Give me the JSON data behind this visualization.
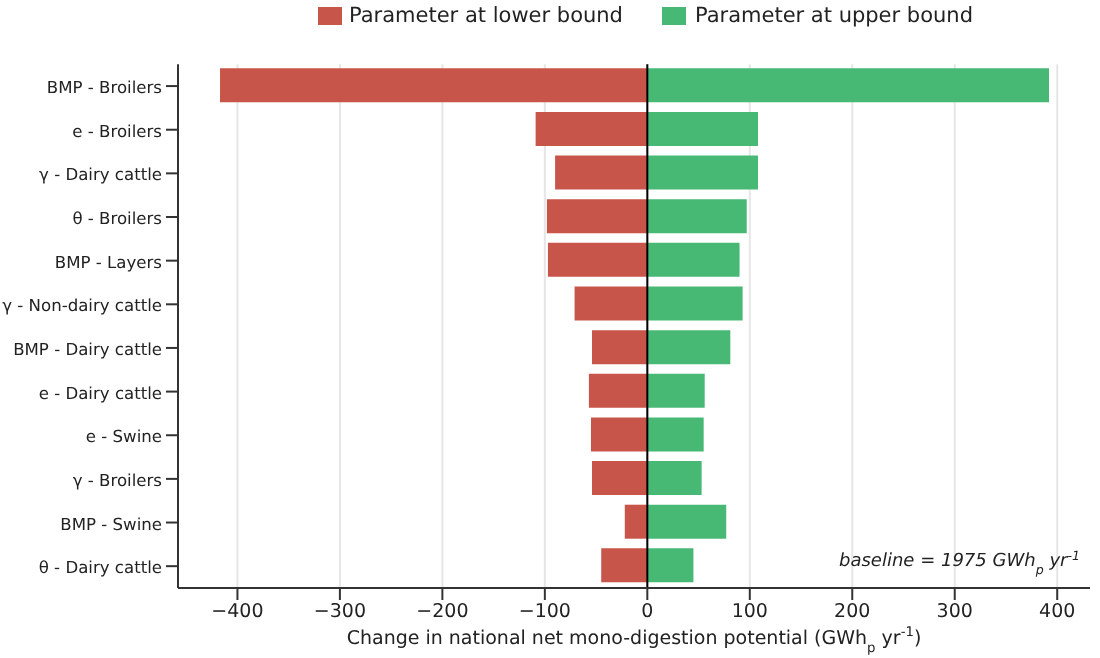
{
  "chart_data": {
    "type": "bar",
    "orientation": "horizontal",
    "stacked": true,
    "categories": [
      "BMP - Broilers",
      "e - Broilers",
      "γ - Dairy cattle",
      "θ - Broilers",
      "BMP - Layers",
      "γ - Non-dairy cattle",
      "BMP - Dairy cattle",
      "e - Dairy cattle",
      "e - Swine",
      "γ - Broilers",
      "BMP - Swine",
      "θ - Dairy cattle"
    ],
    "series": [
      {
        "name": "Parameter at lower bound",
        "color": "#c8554a",
        "values": [
          -417,
          -109,
          -90,
          -98,
          -97,
          -71,
          -54,
          -57,
          -55,
          -54,
          -22,
          -45
        ]
      },
      {
        "name": "Parameter at upper bound",
        "color": "#47b975",
        "values": [
          392,
          108,
          108,
          97,
          90,
          93,
          81,
          56,
          55,
          53,
          77,
          45
        ]
      }
    ],
    "xlabel": "Change in national net mono-digestion potential (GWh$_{p}$ yr$^{-1}$)",
    "xlim": [
      -458,
      432
    ],
    "xticks": [
      {
        "value": -400,
        "label": "−400"
      },
      {
        "value": -300,
        "label": "−300"
      },
      {
        "value": -200,
        "label": "−200"
      },
      {
        "value": -100,
        "label": "−100"
      },
      0,
      100,
      200,
      300,
      400
    ],
    "grid": "x",
    "legend": "top",
    "ref_lines": [
      {
        "axis": "x",
        "value": 0,
        "color": "#000000"
      }
    ],
    "annotations": [
      "baseline = 1975 GWh$_{p}$ yr$^{-1}$"
    ]
  }
}
